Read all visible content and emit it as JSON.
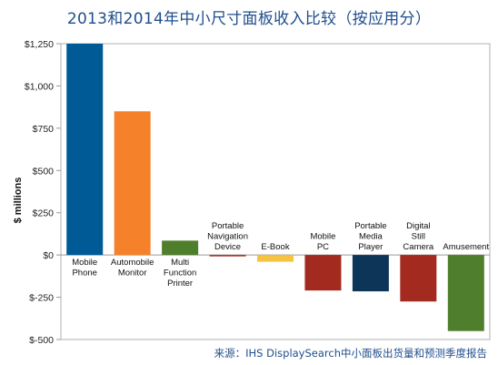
{
  "title": "2013和2014年中小尺寸面板收入比较（按应用分）",
  "source": "来源：IHS DisplaySearch中小面板出货量和预测季度报告",
  "chart_data": {
    "type": "bar",
    "title": "2013和2014年中小尺寸面板收入比较（按应用分）",
    "ylabel": "$ millions",
    "xlabel": "",
    "ylim": [
      -500,
      1250
    ],
    "yticks": [
      1250,
      1000,
      750,
      500,
      250,
      0,
      -250,
      -500
    ],
    "ytick_labels": [
      "$1,250",
      "$1,000",
      "$750",
      "$500",
      "$250",
      "$0",
      "$-250",
      "$-500"
    ],
    "grid": false,
    "categories": [
      [
        "Mobile",
        "Phone"
      ],
      [
        "Automobile",
        "Monitor"
      ],
      [
        "Multi",
        "Function",
        "Printer"
      ],
      [
        "Portable",
        "Navigation",
        "Device"
      ],
      [
        "E-Book"
      ],
      [
        "Mobile",
        "PC"
      ],
      [
        "Portable",
        "Media",
        "Player"
      ],
      [
        "Digital",
        "Still",
        "Camera"
      ],
      [
        "Amusement"
      ]
    ],
    "values": [
      1250,
      850,
      85,
      -5,
      -40,
      -210,
      -215,
      -275,
      -450
    ],
    "colors": [
      "#005a96",
      "#f5822a",
      "#4f7f2c",
      "#a32a1f",
      "#f5c242",
      "#a32a1f",
      "#0c3557",
      "#a32a1f",
      "#4f7f2c"
    ]
  }
}
